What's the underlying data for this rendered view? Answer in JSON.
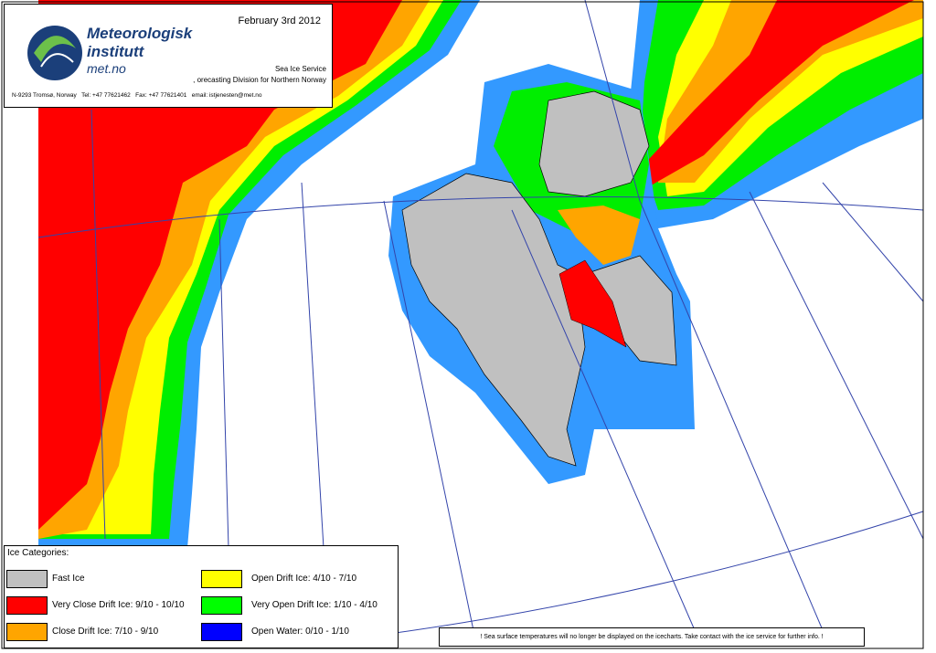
{
  "header": {
    "org_line1": "Meteorologisk",
    "org_line2": "institutt",
    "site": "met.no",
    "date": "February 3rd 2012",
    "service": "Sea Ice Service",
    "division": ", orecasting Division for Northern Norway",
    "contact": "N-9293 Tromsø, Norway   Tel: +47 77621462   Fax: +47 77621401   email: istjenesten@met.no"
  },
  "legend": {
    "title": "Ice Categories:",
    "items": [
      {
        "label": "Fast Ice",
        "color": "#c0c0c0"
      },
      {
        "label": "Very Close Drift Ice:  9/10 - 10/10",
        "color": "#ff0000"
      },
      {
        "label": "Close Drift Ice:  7/10 - 9/10",
        "color": "#ffa500"
      },
      {
        "label": "Open Drift Ice:  4/10 - 7/10",
        "color": "#ffff00"
      },
      {
        "label": "Very Open Drift Ice:  1/10 - 4/10",
        "color": "#00ff00"
      },
      {
        "label": "Open Water:  0/10 - 1/10",
        "color": "#0000ff"
      }
    ]
  },
  "notice": "!  Sea surface temperatures will no longer be displayed on the icecharts. Take contact with the ice service for further info.  !"
}
